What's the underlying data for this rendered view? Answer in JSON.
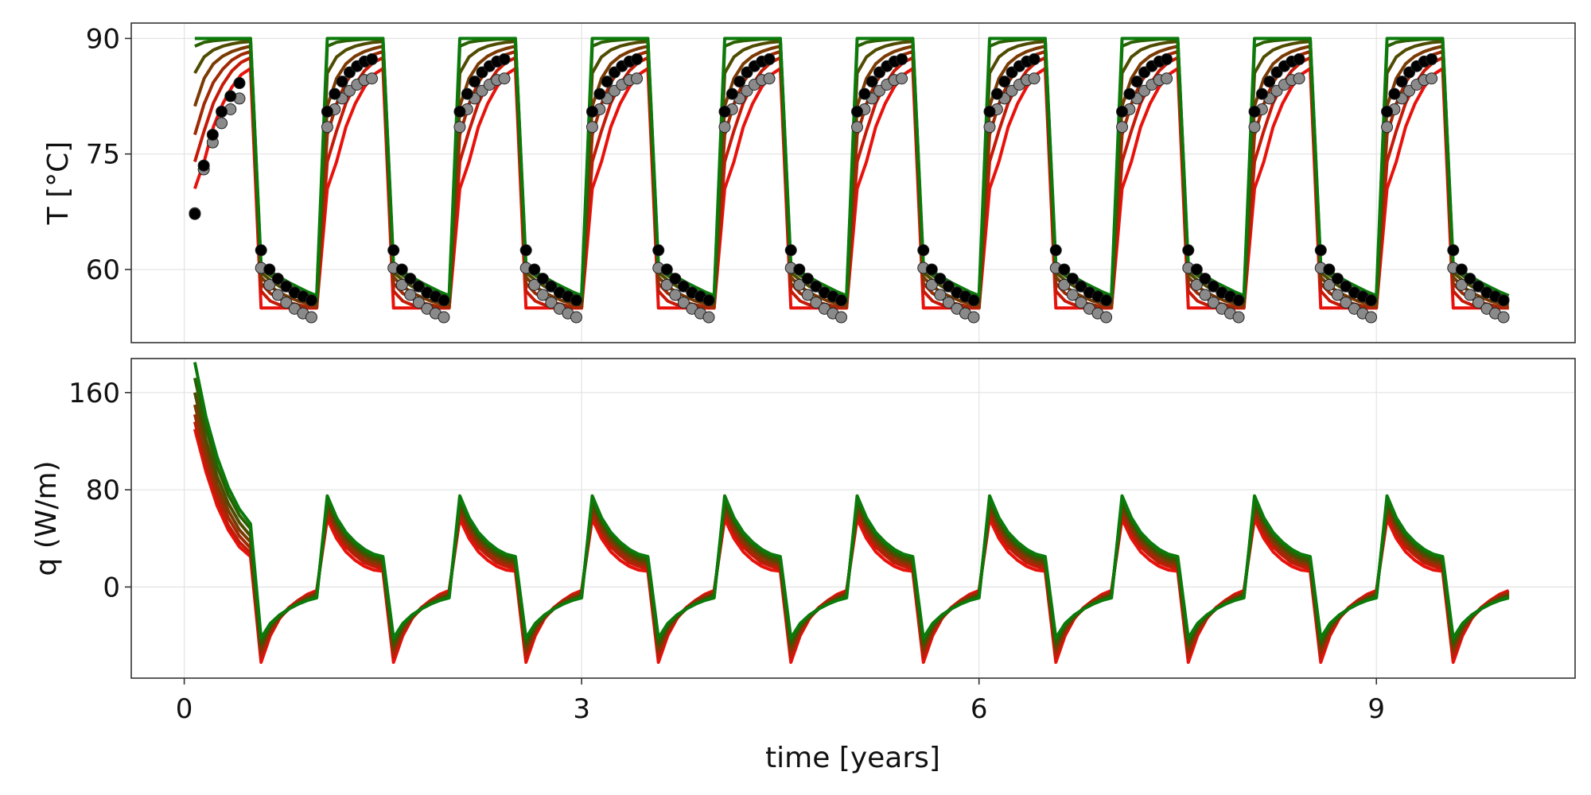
{
  "chart_data": [
    {
      "type": "line",
      "panel": "top",
      "ylabel": "T [°C]",
      "ylim": [
        50.5,
        92
      ],
      "xlim": [
        -0.4,
        10.5
      ],
      "yticks": [
        60,
        75,
        90
      ],
      "xticks": [
        0,
        3,
        6,
        9
      ],
      "grid": true,
      "period_years": 1,
      "heating_window": [
        0.08,
        0.5
      ],
      "step": 0.0833,
      "series": [
        {
          "color": "#e8120c",
          "summer": [
            70.5,
            74.0,
            78.5,
            81.5,
            83.7,
            85.3,
            86.1
          ],
          "winter": [
            55.0,
            55.0,
            55.0,
            55.0,
            55.0,
            55.0,
            55.0
          ]
        },
        {
          "color": "#c51a08",
          "summer": [
            74.0,
            78.0,
            81.6,
            84.0,
            85.8,
            86.9,
            87.5
          ],
          "winter": [
            57.2,
            55.9,
            55.4,
            55.2,
            55.1,
            55.0,
            55.0
          ]
        },
        {
          "color": "#a02a05",
          "summer": [
            77.5,
            81.5,
            84.3,
            86.0,
            87.2,
            87.9,
            88.3
          ],
          "winter": [
            58.2,
            56.9,
            56.2,
            55.7,
            55.4,
            55.2,
            55.1
          ]
        },
        {
          "color": "#7a3a03",
          "summer": [
            81.2,
            84.8,
            86.7,
            87.7,
            88.3,
            88.7,
            89.0
          ],
          "winter": [
            59.0,
            57.8,
            57.0,
            56.4,
            55.9,
            55.6,
            55.4
          ]
        },
        {
          "color": "#4f4c02",
          "summer": [
            85.5,
            87.6,
            88.5,
            89.0,
            89.3,
            89.5,
            89.6
          ],
          "winter": [
            59.6,
            58.6,
            57.8,
            57.2,
            56.6,
            56.2,
            55.8
          ]
        },
        {
          "color": "#2a6102",
          "summer": [
            89.0,
            89.5,
            89.7,
            89.8,
            89.9,
            89.9,
            90.0
          ],
          "winter": [
            60.1,
            59.2,
            58.4,
            57.8,
            57.2,
            56.7,
            56.2
          ]
        },
        {
          "color": "#0a7a0a",
          "summer": [
            90.0,
            90.0,
            90.0,
            90.0,
            90.0,
            90.0,
            90.0
          ],
          "winter": [
            60.6,
            59.7,
            59.0,
            58.3,
            57.7,
            57.1,
            56.6
          ]
        }
      ],
      "markers": [
        {
          "name": "black",
          "color": "#000000",
          "first_summer": [
            67.2,
            73.5,
            77.5,
            80.5,
            82.5,
            84.2
          ],
          "summer": [
            80.5,
            82.8,
            84.4,
            85.6,
            86.4,
            87.0,
            87.3
          ],
          "winter": [
            62.5,
            60.0,
            58.8,
            57.8,
            57.0,
            56.5,
            56.0
          ]
        },
        {
          "name": "grey",
          "color": "#8a8a8a",
          "first_summer": [
            67.3,
            73.0,
            76.5,
            79.0,
            80.8,
            82.2
          ],
          "summer": [
            78.5,
            80.8,
            82.2,
            83.2,
            84.0,
            84.6,
            84.8
          ],
          "winter": [
            60.2,
            58.0,
            56.7,
            55.7,
            54.9,
            54.3,
            53.8
          ]
        }
      ]
    },
    {
      "type": "line",
      "panel": "bottom",
      "ylabel": "q (W/m)",
      "xlabel": "time [years]",
      "ylim": [
        -75,
        188
      ],
      "xlim": [
        -0.4,
        10.5
      ],
      "yticks": [
        0,
        80,
        160
      ],
      "xticks": [
        0,
        3,
        6,
        9
      ],
      "grid": true,
      "first_summer": [
        [
          130,
          95,
          67,
          47,
          33,
          25
        ],
        [
          136,
          100,
          72,
          51,
          37,
          28
        ],
        [
          142,
          106,
          78,
          57,
          42,
          32
        ],
        [
          150,
          113,
          84,
          63,
          47,
          37
        ],
        [
          160,
          121,
          91,
          69,
          53,
          42
        ],
        [
          172,
          131,
          99,
          76,
          59,
          48
        ],
        [
          185,
          140,
          107,
          82,
          64,
          52
        ]
      ],
      "summer": [
        [
          56,
          40,
          29,
          22,
          17,
          14,
          13
        ],
        [
          60,
          44,
          33,
          26,
          20,
          17,
          15
        ],
        [
          63,
          47,
          36,
          28,
          22,
          19,
          17
        ],
        [
          66,
          50,
          38,
          31,
          25,
          21,
          19
        ],
        [
          69,
          53,
          41,
          33,
          27,
          23,
          21
        ],
        [
          72,
          55,
          43,
          35,
          29,
          25,
          23
        ],
        [
          75,
          57,
          45,
          37,
          31,
          27,
          25
        ]
      ],
      "winter": [
        [
          -62,
          -40,
          -26,
          -17,
          -11,
          -6,
          -3
        ],
        [
          -58,
          -38,
          -25,
          -17,
          -11,
          -7,
          -4
        ],
        [
          -54,
          -36,
          -25,
          -18,
          -12,
          -8,
          -5
        ],
        [
          -51,
          -34,
          -25,
          -18,
          -13,
          -9,
          -6
        ],
        [
          -48,
          -32,
          -24,
          -18,
          -14,
          -10,
          -7
        ],
        [
          -45,
          -31,
          -23,
          -18,
          -14,
          -11,
          -8
        ],
        [
          -42,
          -30,
          -23,
          -18,
          -14,
          -11,
          -9
        ]
      ],
      "colors": [
        "#e8120c",
        "#c51a08",
        "#a02a05",
        "#7a3a03",
        "#4f4c02",
        "#2a6102",
        "#0a7a0a"
      ]
    }
  ]
}
